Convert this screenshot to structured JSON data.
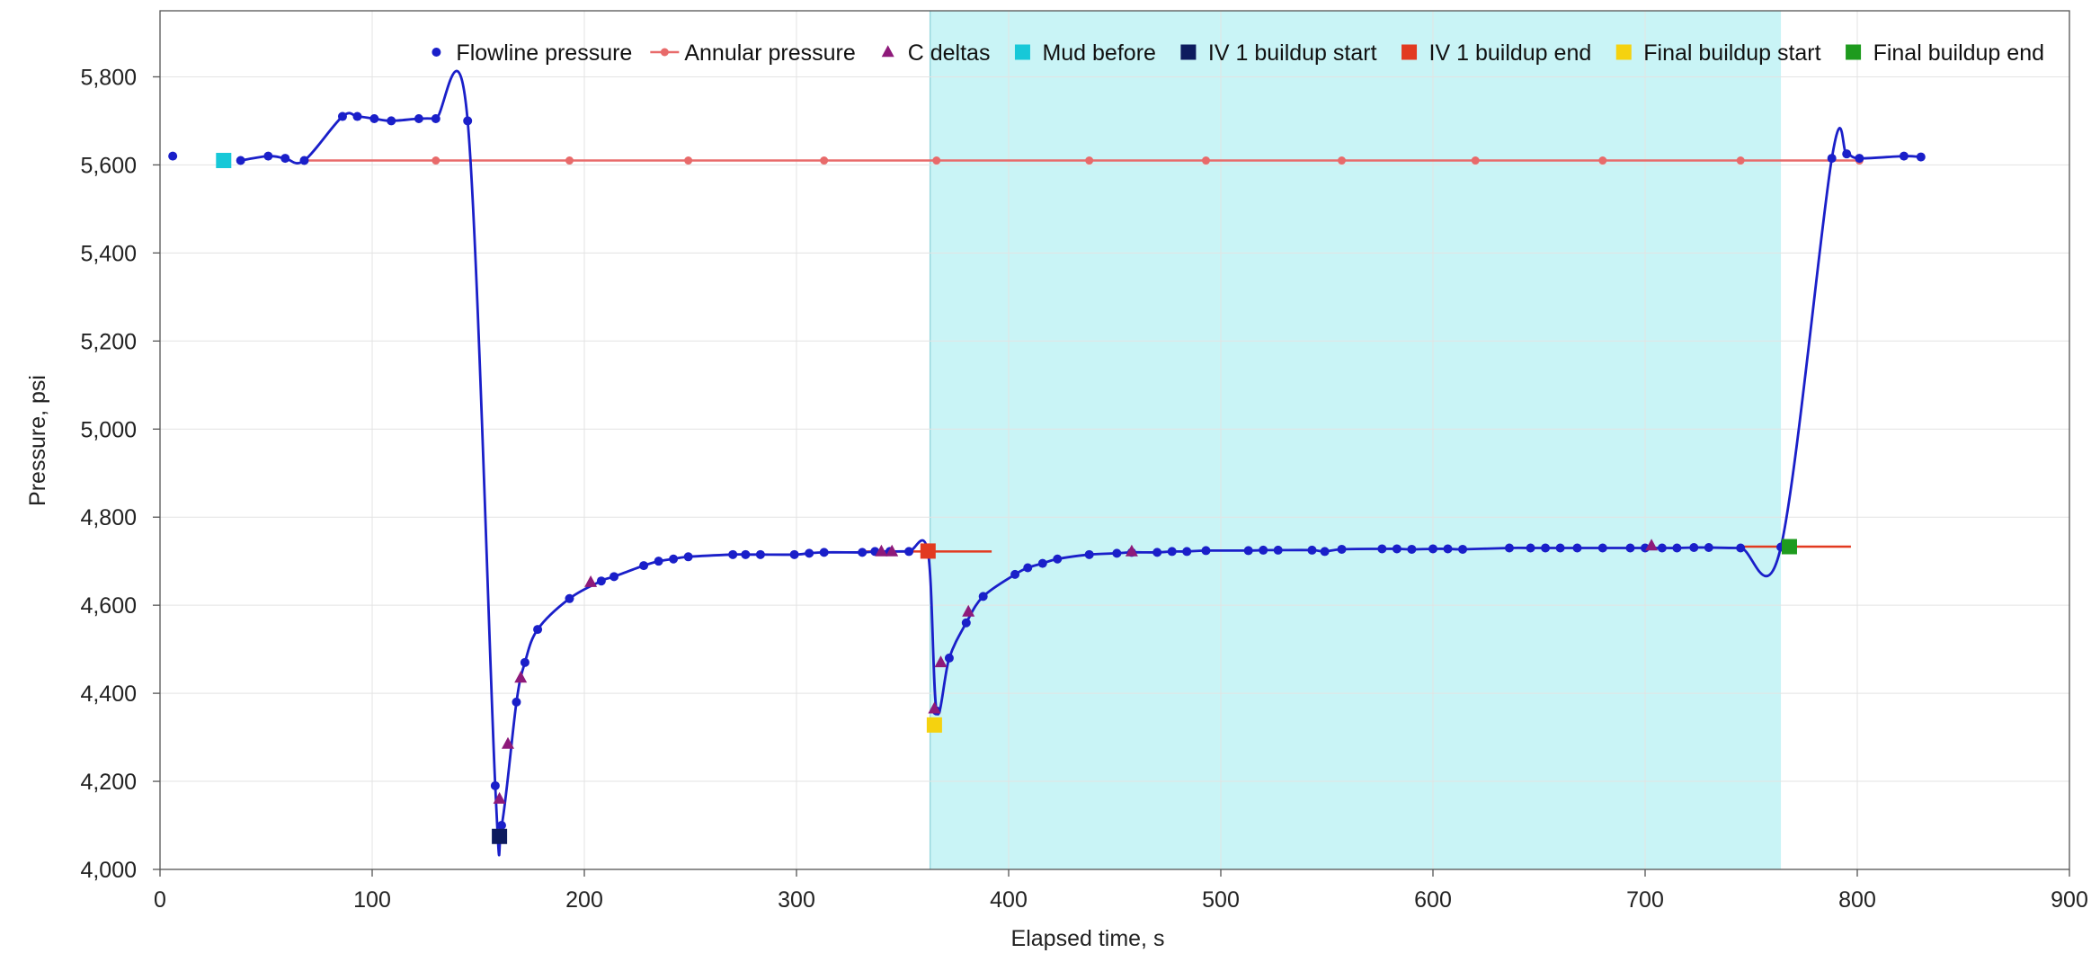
{
  "chart_data": {
    "type": "line",
    "xlabel": "Elapsed time, s",
    "ylabel": "Pressure, psi",
    "xlim": [
      0,
      900
    ],
    "ylim": [
      4000,
      5950
    ],
    "x_ticks": [
      0,
      100,
      200,
      300,
      400,
      500,
      600,
      700,
      800,
      900
    ],
    "y_ticks": [
      4000,
      4200,
      4400,
      4600,
      4800,
      5000,
      5200,
      5400,
      5600,
      5800
    ],
    "x_tick_labels": [
      "0",
      "100",
      "200",
      "300",
      "400",
      "500",
      "600",
      "700",
      "800",
      "900"
    ],
    "y_tick_labels": [
      "4,000",
      "4,200",
      "4,400",
      "4,600",
      "4,800",
      "5,000",
      "5,200",
      "5,400",
      "5,600",
      "5,800"
    ],
    "grid": true,
    "legend_position": "top-right",
    "shaded_region": {
      "x_start": 363,
      "x_end": 764,
      "color": "#c9f4f6"
    },
    "series": [
      {
        "name": "Flowline pressure",
        "kind": "line-markers",
        "color": "#1a1fc9",
        "marker": "circle",
        "x": [
          6,
          38,
          51,
          59,
          68,
          86,
          93,
          101,
          109,
          122,
          130,
          145,
          158,
          161,
          168,
          172,
          178,
          193,
          208,
          214,
          228,
          235,
          242,
          249,
          270,
          276,
          283,
          299,
          306,
          313,
          331,
          337,
          344,
          353,
          362,
          366,
          372,
          380,
          388,
          403,
          409,
          416,
          423,
          438,
          451,
          458,
          470,
          477,
          484,
          493,
          513,
          520,
          527,
          543,
          549,
          557,
          576,
          583,
          590,
          600,
          607,
          614,
          636,
          646,
          653,
          660,
          668,
          680,
          693,
          700,
          708,
          715,
          723,
          730,
          745,
          764,
          788,
          795,
          801,
          822,
          830
        ],
        "y": [
          5620,
          5610,
          5620,
          5615,
          5610,
          5710,
          5710,
          5705,
          5700,
          5705,
          5705,
          5700,
          4190,
          4100,
          4380,
          4470,
          4545,
          4615,
          4655,
          4665,
          4690,
          4700,
          4705,
          4710,
          4715,
          4715,
          4715,
          4715,
          4718,
          4720,
          4720,
          4722,
          4722,
          4722,
          4720,
          4360,
          4480,
          4560,
          4620,
          4670,
          4685,
          4695,
          4705,
          4715,
          4718,
          4720,
          4720,
          4722,
          4722,
          4724,
          4724,
          4725,
          4725,
          4725,
          4722,
          4727,
          4728,
          4728,
          4727,
          4728,
          4728,
          4727,
          4730,
          4730,
          4730,
          4730,
          4730,
          4730,
          4730,
          4730,
          4730,
          4730,
          4731,
          4731,
          4730,
          4732,
          5615,
          5625,
          5615,
          5620,
          5618
        ]
      },
      {
        "name": "Annular pressure",
        "kind": "line-markers",
        "color": "#e86a6a",
        "marker": "circle",
        "x": [
          68,
          130,
          193,
          249,
          313,
          366,
          438,
          493,
          557,
          620,
          680,
          745,
          801
        ],
        "y": [
          5610,
          5610,
          5610,
          5610,
          5610,
          5610,
          5610,
          5610,
          5610,
          5610,
          5610,
          5610,
          5610
        ]
      },
      {
        "name": "C deltas",
        "kind": "markers",
        "color": "#8e1a7a",
        "marker": "triangle",
        "x": [
          160,
          164,
          170,
          203,
          340,
          345,
          365,
          368,
          381,
          458,
          703
        ],
        "y": [
          4160,
          4285,
          4435,
          4652,
          4722,
          4722,
          4365,
          4470,
          4585,
          4722,
          4735
        ]
      },
      {
        "name": "Mud before",
        "kind": "markers",
        "color": "#17c8d8",
        "marker": "square",
        "x": [
          30
        ],
        "y": [
          5610
        ]
      },
      {
        "name": "IV 1 buildup start",
        "kind": "markers",
        "color": "#0d1b5e",
        "marker": "square",
        "x": [
          160
        ],
        "y": [
          4075
        ]
      },
      {
        "name": "IV 1 buildup end",
        "kind": "markers",
        "color": "#e23a20",
        "marker": "square",
        "x": [
          362
        ],
        "y": [
          4723
        ]
      },
      {
        "name": "Final buildup start",
        "kind": "markers",
        "color": "#f5d20f",
        "marker": "square",
        "x": [
          365
        ],
        "y": [
          4328
        ]
      },
      {
        "name": "Final buildup end",
        "kind": "markers",
        "color": "#1e9b1e",
        "marker": "square",
        "x": [
          768
        ],
        "y": [
          4733
        ]
      }
    ],
    "reference_lines": [
      {
        "color": "#e23a20",
        "x_start": 331,
        "x_end": 392,
        "y": 4722
      },
      {
        "color": "#e23a20",
        "x_start": 745,
        "x_end": 797,
        "y": 4733
      }
    ]
  }
}
